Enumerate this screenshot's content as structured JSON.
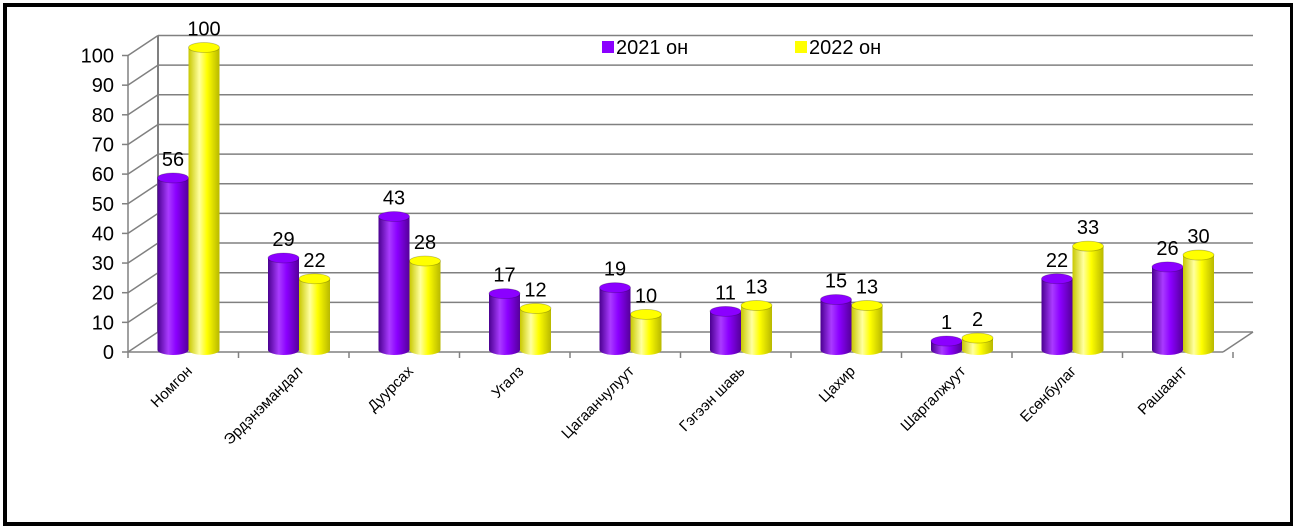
{
  "colors": {
    "series_2021": "#8B00FF",
    "series_2022": "#FFFF00",
    "grid": "#808080",
    "frame": "#000000"
  },
  "chart_data": {
    "type": "bar",
    "categories": [
      "Номгон",
      "Эрдэнэмандал",
      "Дуурсах",
      "Угалз",
      "Цагаанчулуут",
      "Гэгээн шавь",
      "Цахир",
      "Шаргалжуут",
      "Есөнбулаг",
      "Рашаант"
    ],
    "series": [
      {
        "name": "2021 он",
        "values": [
          56,
          29,
          43,
          17,
          19,
          11,
          15,
          1,
          22,
          26
        ]
      },
      {
        "name": "2022 он",
        "values": [
          100,
          22,
          28,
          12,
          10,
          13,
          13,
          2,
          33,
          30
        ]
      }
    ],
    "ylim": [
      0,
      100
    ],
    "yticks": [
      0,
      10,
      20,
      30,
      40,
      50,
      60,
      70,
      80,
      90,
      100
    ],
    "grid": true,
    "legend": "top-center",
    "style": "3d-cylinder",
    "data_labels": true
  }
}
